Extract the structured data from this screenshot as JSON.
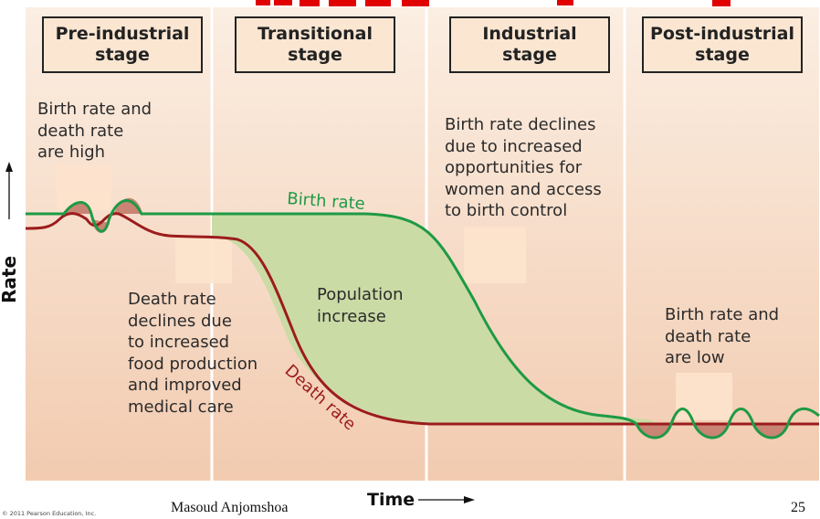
{
  "title_partial": "... graph ... ... ... g",
  "colors": {
    "title": "#e00000",
    "background_top": "#fbeee2",
    "background_bottom": "#f2cbb0",
    "divider": "#ffffff",
    "birth_rate": "#1e9a44",
    "death_rate": "#9b1c1c",
    "population_fill": "#cbdba6",
    "bump_fill": "#c98474",
    "box_border": "#222222"
  },
  "stages": [
    {
      "line1": "Pre-industrial",
      "line2": "stage"
    },
    {
      "line1": "Transitional",
      "line2": "stage"
    },
    {
      "line1": "Industrial",
      "line2": "stage"
    },
    {
      "line1": "Post-industrial",
      "line2": "stage"
    }
  ],
  "notes": {
    "pre": [
      "Birth rate and",
      "death rate",
      "are high"
    ],
    "industrial": [
      "Birth rate declines",
      "due to increased",
      "opportunities for",
      "women and access",
      "to birth control"
    ],
    "death_decline": [
      "Death rate",
      "declines due",
      "to increased",
      "food production",
      "and improved",
      "medical care"
    ],
    "population": [
      "Population",
      "increase"
    ],
    "post": [
      "Birth rate and",
      "death rate",
      "are low"
    ]
  },
  "labels": {
    "birth_rate": "Birth rate",
    "death_rate": "Death rate",
    "y_axis": "Rate",
    "x_axis": "Time"
  },
  "footer": {
    "copyright": "© 2011 Pearson Education, Inc.",
    "author": "Masoud Anjomshoa",
    "page_number": "25"
  }
}
